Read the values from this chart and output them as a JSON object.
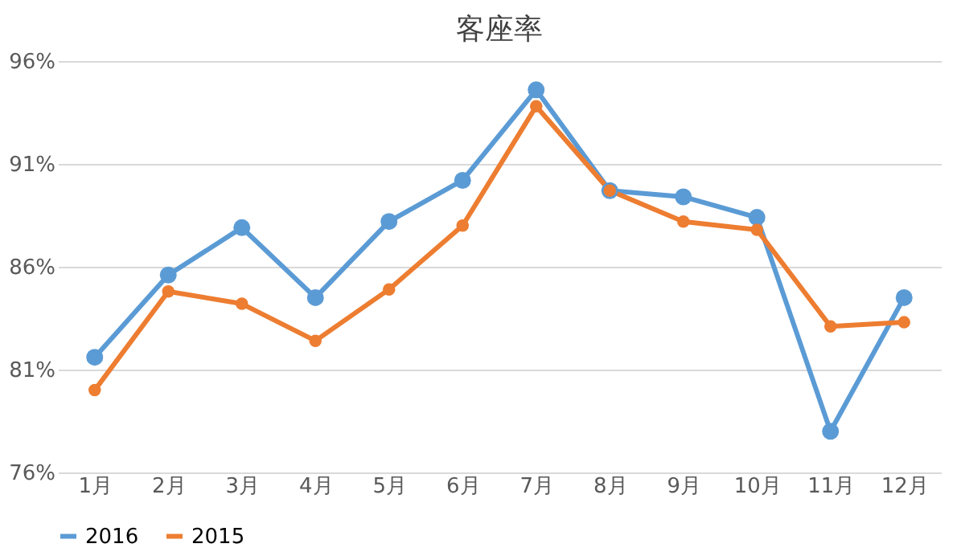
{
  "chart_data": {
    "type": "line",
    "title": "客座率",
    "categories": [
      "1月",
      "2月",
      "3月",
      "4月",
      "5月",
      "6月",
      "7月",
      "8月",
      "9月",
      "10月",
      "11月",
      "12月"
    ],
    "series": [
      {
        "name": "2016",
        "color": "#5b9bd5",
        "values": [
          81.6,
          85.6,
          87.9,
          84.5,
          88.2,
          90.2,
          94.6,
          89.7,
          89.4,
          88.4,
          78.0,
          84.5
        ]
      },
      {
        "name": "2015",
        "color": "#ed7d31",
        "values": [
          80.0,
          84.8,
          84.2,
          82.4,
          84.9,
          88.0,
          93.8,
          89.7,
          88.2,
          87.8,
          83.1,
          83.3
        ]
      }
    ],
    "ylim": [
      76,
      96
    ],
    "yticks": [
      {
        "value": 76,
        "label": "76%"
      },
      {
        "value": 81,
        "label": "81%"
      },
      {
        "value": 86,
        "label": "86%"
      },
      {
        "value": 91,
        "label": "91%"
      },
      {
        "value": 96,
        "label": "96%"
      }
    ],
    "grid": "y",
    "legend": "bottom",
    "marker": "circle",
    "line_style": "solid"
  }
}
